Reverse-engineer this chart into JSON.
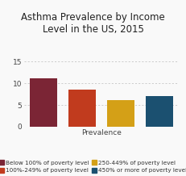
{
  "title": "Asthma Prevalence by Income\nLevel in the US, 2015",
  "xlabel": "Prevalence",
  "values": [
    11.2,
    8.5,
    6.2,
    7.0
  ],
  "bar_colors": [
    "#7b2535",
    "#c13b1e",
    "#d4a017",
    "#1b5070"
  ],
  "ylim": [
    0,
    17
  ],
  "yticks": [
    0,
    5,
    10,
    15
  ],
  "legend_labels": [
    "Below 100% of poverty level",
    "100%-249% of poverty level",
    "250-449% of poverty level",
    "450% or more of poverty level"
  ],
  "legend_colors": [
    "#7b2535",
    "#c13b1e",
    "#d4a017",
    "#1b5070"
  ],
  "title_fontsize": 8.5,
  "axis_fontsize": 6.5,
  "legend_fontsize": 5.2,
  "background_color": "#f9f9f9"
}
